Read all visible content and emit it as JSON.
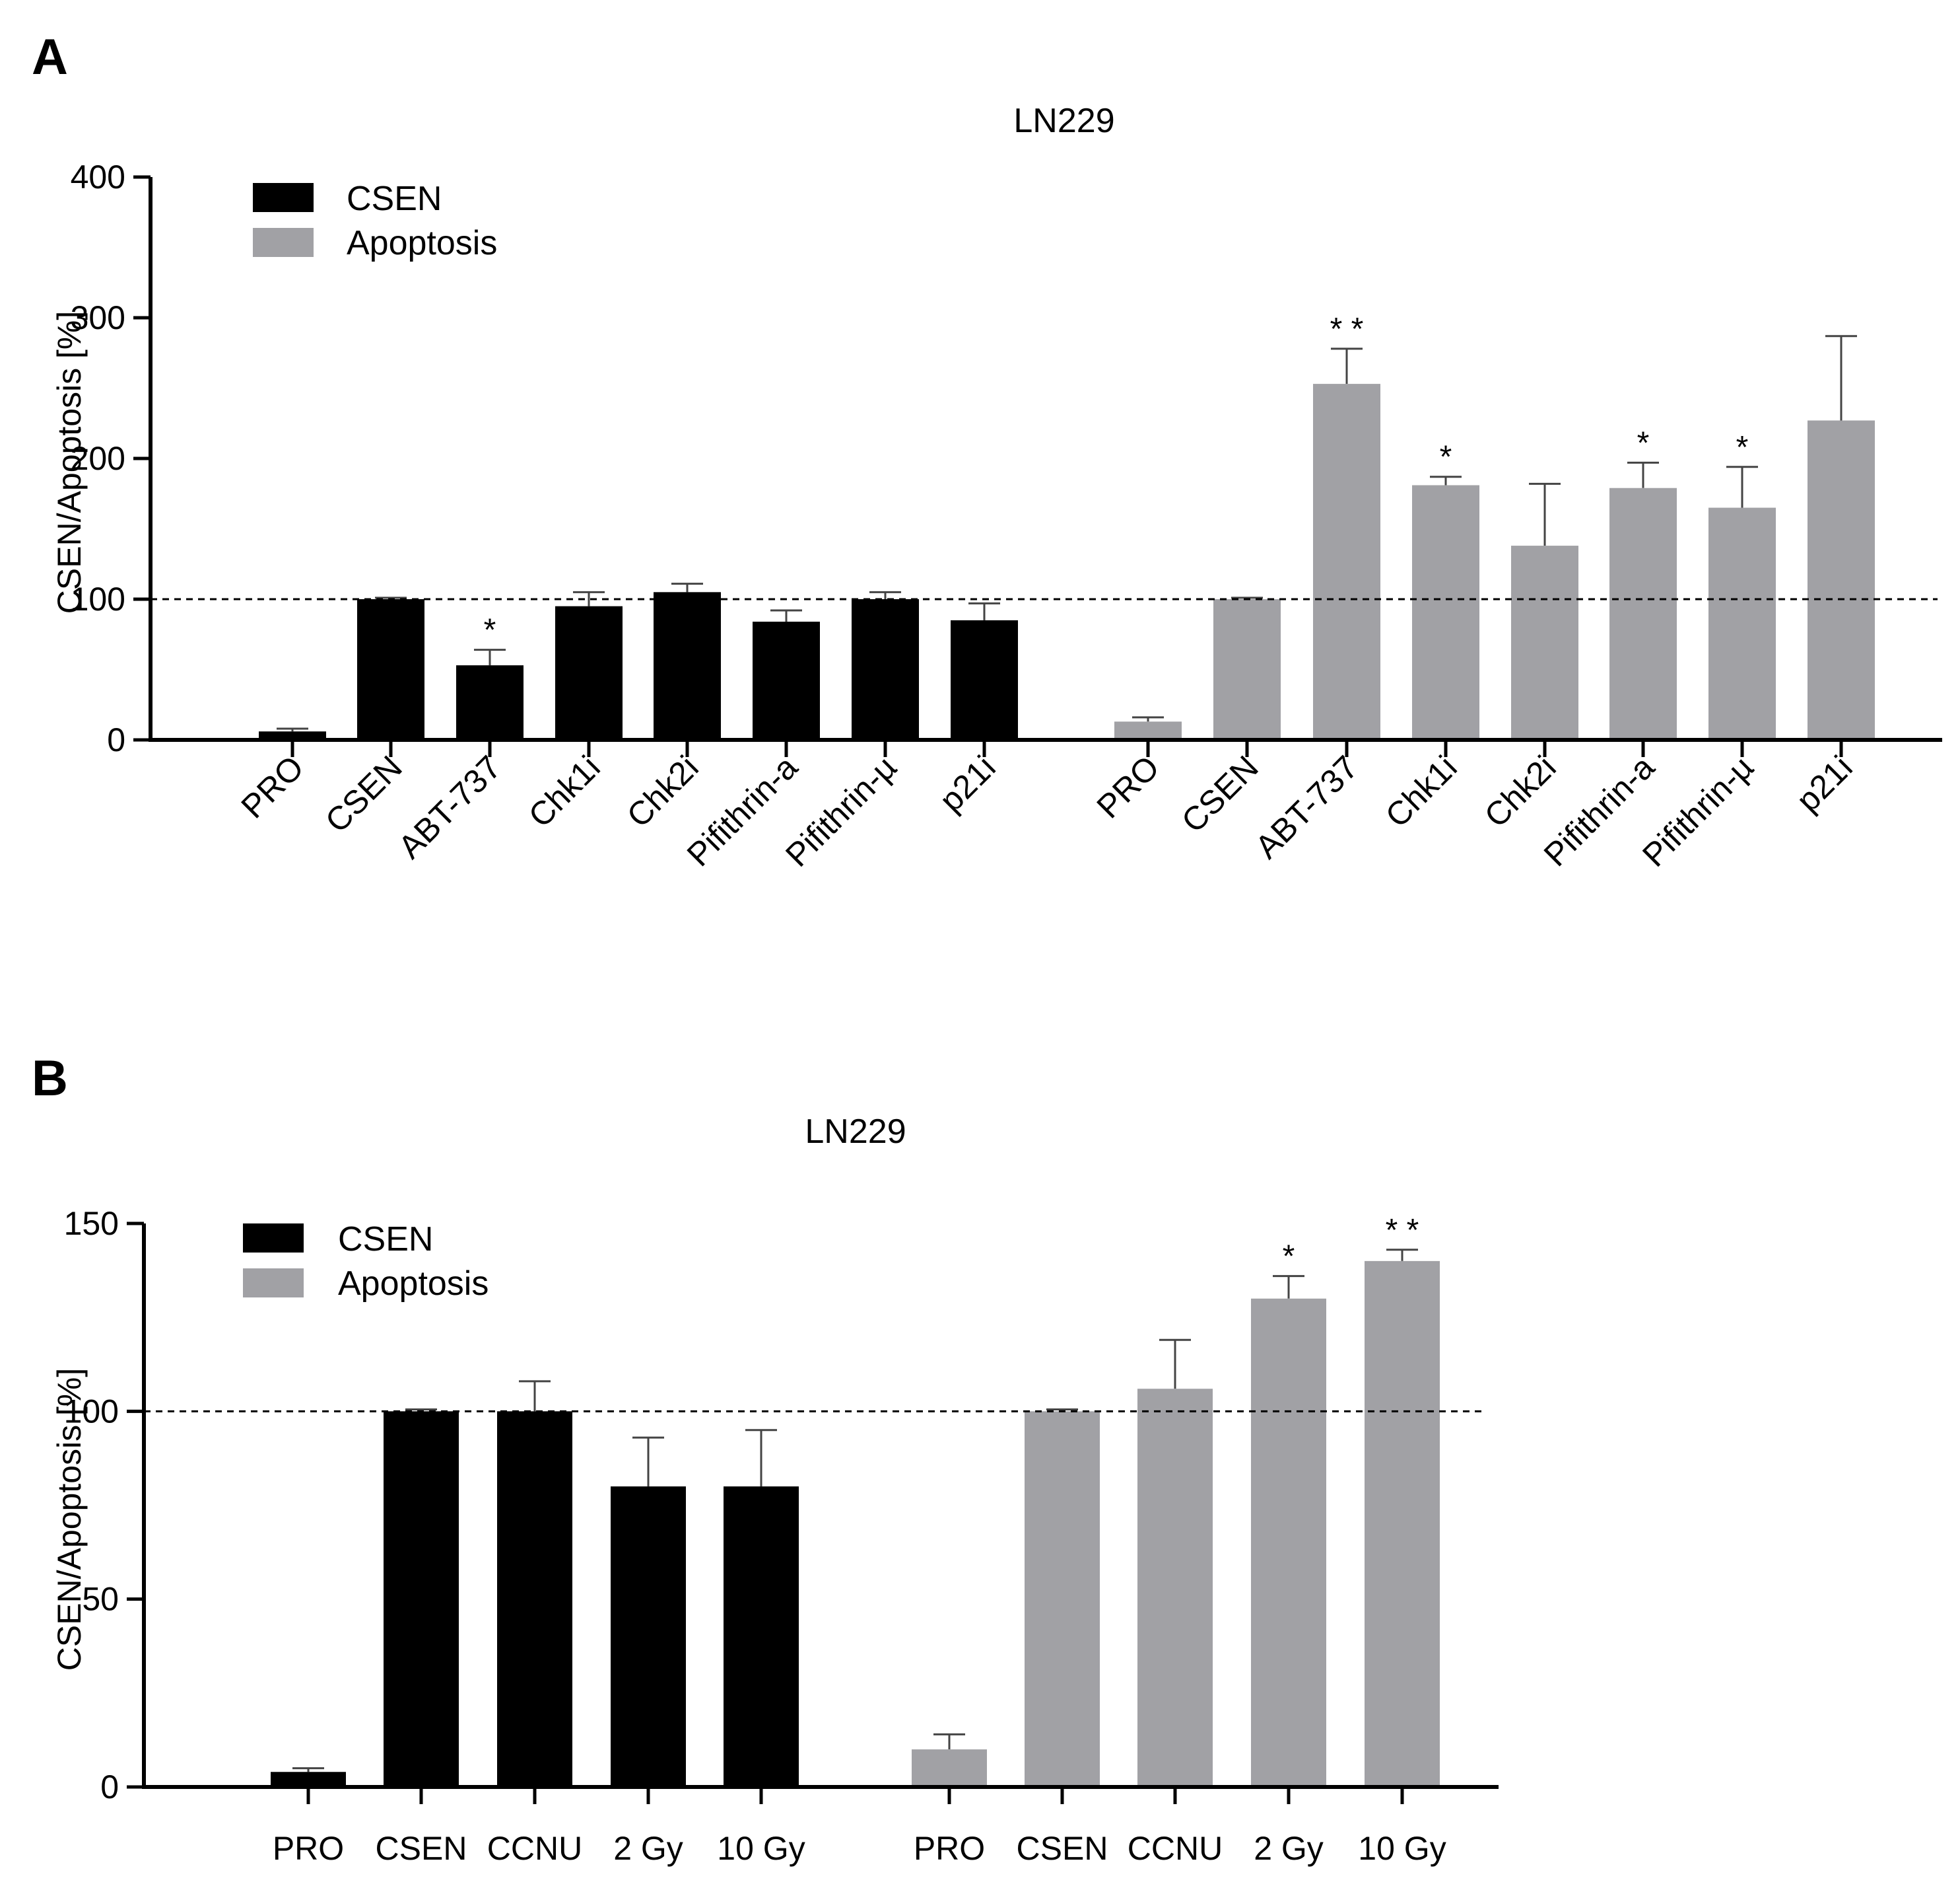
{
  "colors": {
    "csen": "#000000",
    "apoptosis": "#a1a1a5",
    "axis": "#000000"
  },
  "chart_data": [
    {
      "panel": "A",
      "type": "bar",
      "title": "LN229",
      "xlabel": "",
      "ylabel": "CSEN/Apoptosis [%]",
      "ylim": [
        0,
        400
      ],
      "yticks": [
        "0",
        "100",
        "200",
        "300",
        "400"
      ],
      "reference_line": 100,
      "legend": [
        "CSEN",
        "Apoptosis"
      ],
      "legend_position": "top-left",
      "series": [
        {
          "name": "CSEN",
          "categories": [
            "PRO",
            "CSEN",
            "ABT-737",
            "Chk1i",
            "Chk2i",
            "Pifithrin-a",
            "Pifithrin-µ",
            "p21i"
          ],
          "values": [
            6,
            100,
            53,
            95,
            105,
            84,
            100,
            85
          ],
          "errors": [
            2,
            1,
            11,
            10,
            6,
            8,
            5,
            12
          ],
          "annotations": [
            "",
            "",
            "*",
            "",
            "",
            "",
            "",
            ""
          ]
        },
        {
          "name": "Apoptosis",
          "categories": [
            "PRO",
            "CSEN",
            "ABT-737",
            "Chk1i",
            "Chk2i",
            "Pifithrin-a",
            "Pifithrin-µ",
            "p21i"
          ],
          "values": [
            13,
            100,
            253,
            181,
            138,
            179,
            165,
            227
          ],
          "errors": [
            3,
            1,
            25,
            6,
            44,
            18,
            29,
            60
          ],
          "annotations": [
            "",
            "",
            "**",
            "*",
            "",
            "*",
            "*",
            ""
          ]
        }
      ]
    },
    {
      "panel": "B",
      "type": "bar",
      "title": "LN229",
      "xlabel": "",
      "ylabel": "CSEN/Apoptosis [%]",
      "ylim": [
        0,
        150
      ],
      "yticks": [
        "0",
        "50",
        "100",
        "150"
      ],
      "reference_line": 100,
      "legend": [
        "CSEN",
        "Apoptosis"
      ],
      "legend_position": "top-left",
      "series": [
        {
          "name": "CSEN",
          "categories": [
            "PRO",
            "CSEN",
            "CCNU",
            "2 Gy",
            "10 Gy"
          ],
          "values": [
            4,
            100,
            100,
            80,
            80
          ],
          "errors": [
            1,
            0.5,
            8,
            13,
            15
          ],
          "annotations": [
            "",
            "",
            "",
            "",
            ""
          ]
        },
        {
          "name": "Apoptosis",
          "categories": [
            "PRO",
            "CSEN",
            "CCNU",
            "2 Gy",
            "10 Gy"
          ],
          "values": [
            10,
            100,
            106,
            130,
            140
          ],
          "errors": [
            4,
            0.5,
            13,
            6,
            3
          ],
          "annotations": [
            "",
            "",
            "",
            "*",
            "**"
          ]
        }
      ]
    }
  ]
}
